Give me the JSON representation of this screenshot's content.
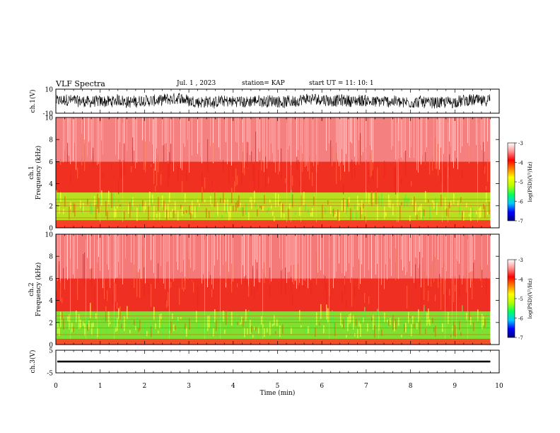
{
  "header": {
    "title": "VLF Spectra",
    "date": "Jul. 1 , 2023",
    "station": "station= KAP",
    "start": "start UT = 11: 10: 1"
  },
  "chart_data": [
    {
      "type": "line",
      "name": "ch1-waveform",
      "ylabel": "ch.1(V)",
      "ylim": [
        -10,
        10
      ],
      "yticks": [
        "10",
        "-10"
      ],
      "xlim": [
        0,
        10
      ]
    },
    {
      "type": "heatmap",
      "name": "ch1-spectrogram",
      "ylabel": "ch.1\nFrequency (kHz)",
      "ylim": [
        0,
        10
      ],
      "yticks": [
        "10",
        "8",
        "6",
        "4",
        "2",
        "0"
      ],
      "xlim": [
        0,
        10
      ],
      "data_end_min": 9.8,
      "colorbar": {
        "label": "log(PSD)(V²/Hz)",
        "range": [
          -7,
          -3
        ],
        "ticks": [
          "-3",
          "-4",
          "-5",
          "-6",
          "-7"
        ]
      },
      "bands": [
        {
          "from_khz": 0.0,
          "to_khz": 0.7,
          "color": "#ff3b2a"
        },
        {
          "from_khz": 0.7,
          "to_khz": 3.2,
          "color": "#b8e020"
        },
        {
          "from_khz": 3.2,
          "to_khz": 6.0,
          "color": "#f03020"
        },
        {
          "from_khz": 6.0,
          "to_khz": 10.0,
          "color": "#f58080"
        }
      ]
    },
    {
      "type": "heatmap",
      "name": "ch2-spectrogram",
      "ylabel": "ch.2\nFrequency (kHz)",
      "ylim": [
        0,
        10
      ],
      "yticks": [
        "10",
        "8",
        "6",
        "4",
        "2",
        "0"
      ],
      "xlim": [
        0,
        10
      ],
      "data_end_min": 9.8,
      "colorbar": {
        "label": "log(PSD)(V²/Hz)",
        "range": [
          -7,
          -3
        ],
        "ticks": [
          "-3",
          "-4",
          "-5",
          "-6",
          "-7"
        ]
      },
      "bands": [
        {
          "from_khz": 0.0,
          "to_khz": 0.5,
          "color": "#ff4a30"
        },
        {
          "from_khz": 0.5,
          "to_khz": 3.0,
          "color": "#7fe030"
        },
        {
          "from_khz": 3.0,
          "to_khz": 6.0,
          "color": "#ee2f22"
        },
        {
          "from_khz": 6.0,
          "to_khz": 10.0,
          "color": "#f47a7a"
        }
      ]
    },
    {
      "type": "line",
      "name": "ch3-waveform",
      "ylabel": "ch.3(V)",
      "ylim": [
        -5,
        5
      ],
      "yticks": [
        "5",
        "-5"
      ],
      "xlim": [
        0,
        10
      ]
    }
  ],
  "x_axis": {
    "label": "Time (min)",
    "ticks": [
      "0",
      "1",
      "2",
      "3",
      "4",
      "5",
      "6",
      "7",
      "8",
      "9",
      "10"
    ]
  },
  "colors": {
    "colorbar_stops": [
      "#000080",
      "#0000ff",
      "#00c8ff",
      "#00ff60",
      "#b0ff00",
      "#ffff00",
      "#ff8000",
      "#ff0000",
      "#ff9090",
      "#ffffff"
    ]
  }
}
